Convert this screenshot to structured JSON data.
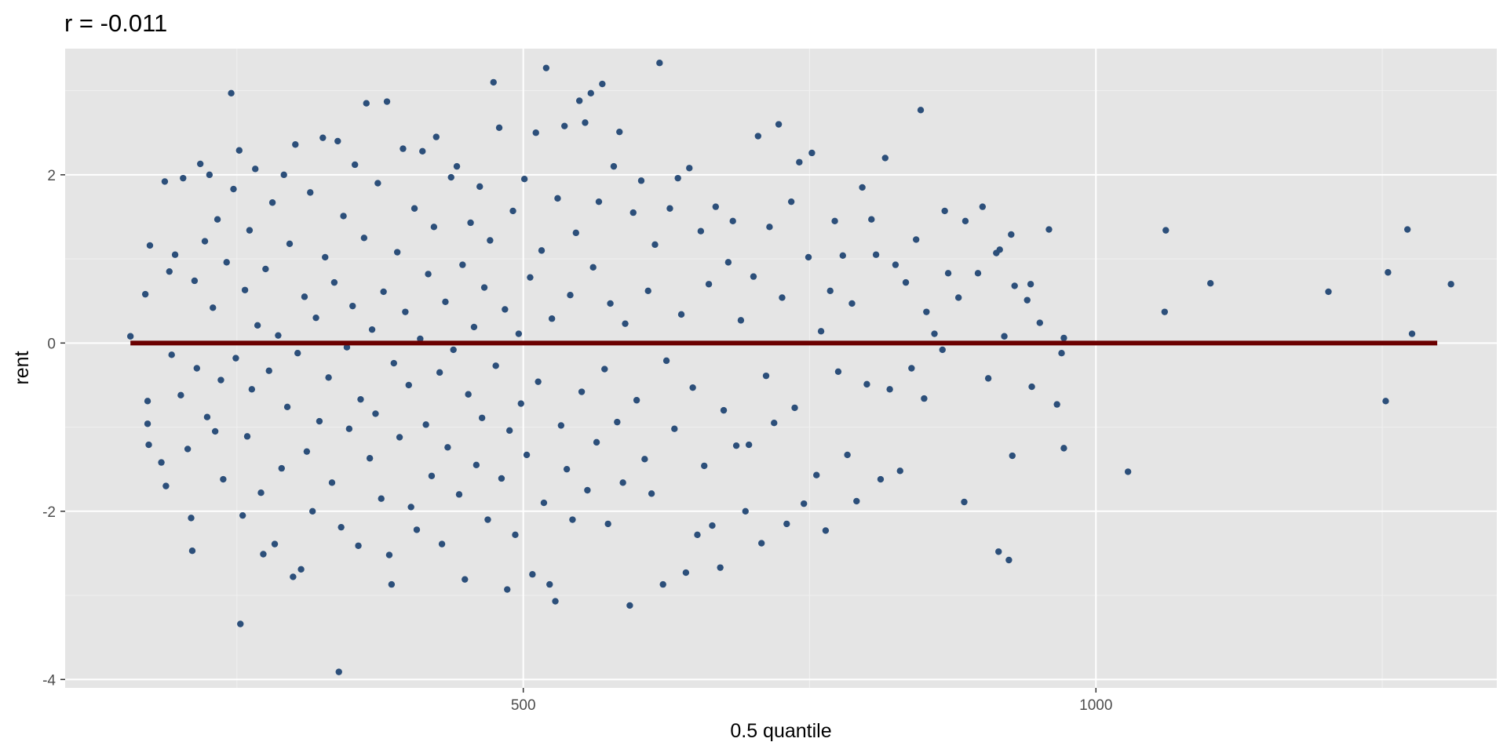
{
  "chart_data": {
    "type": "scatter",
    "title": "r = -0.011",
    "xlabel": "0.5 quantile",
    "ylabel": "rent",
    "xlim": [
      100,
      1350
    ],
    "ylim": [
      -4.1,
      3.5
    ],
    "x_ticks": [
      500,
      1000
    ],
    "x_tick_labels": [
      "500",
      "1000"
    ],
    "x_minor_ticks": [
      250,
      750,
      1250
    ],
    "y_ticks": [
      -4,
      -2,
      0,
      2
    ],
    "y_tick_labels": [
      "-4",
      "-2",
      "0",
      "2"
    ],
    "y_minor_ticks": [
      -3,
      -1,
      1,
      3
    ],
    "grid": true,
    "point_color": "#2c4f7a",
    "line_color": "#6b0000",
    "panel_background": "#e5e5e5",
    "fit_line": {
      "x": [
        157,
        1298
      ],
      "y": [
        0,
        0
      ]
    },
    "points": [
      {
        "x": 157,
        "y": 0.08
      },
      {
        "x": 170,
        "y": 0.58
      },
      {
        "x": 172,
        "y": -0.69
      },
      {
        "x": 173,
        "y": -1.21
      },
      {
        "x": 172,
        "y": -0.96
      },
      {
        "x": 174,
        "y": 1.16
      },
      {
        "x": 184,
        "y": -1.42
      },
      {
        "x": 187,
        "y": 1.92
      },
      {
        "x": 188,
        "y": -1.7
      },
      {
        "x": 191,
        "y": 0.85
      },
      {
        "x": 193,
        "y": -0.14
      },
      {
        "x": 196,
        "y": 1.05
      },
      {
        "x": 201,
        "y": -0.62
      },
      {
        "x": 203,
        "y": 1.96
      },
      {
        "x": 207,
        "y": -1.26
      },
      {
        "x": 210,
        "y": -2.08
      },
      {
        "x": 211,
        "y": -2.47
      },
      {
        "x": 213,
        "y": 0.74
      },
      {
        "x": 215,
        "y": -0.3
      },
      {
        "x": 218,
        "y": 2.13
      },
      {
        "x": 222,
        "y": 1.21
      },
      {
        "x": 224,
        "y": -0.88
      },
      {
        "x": 226,
        "y": 2.0
      },
      {
        "x": 229,
        "y": 0.42
      },
      {
        "x": 231,
        "y": -1.05
      },
      {
        "x": 233,
        "y": 1.47
      },
      {
        "x": 236,
        "y": -0.44
      },
      {
        "x": 238,
        "y": -1.62
      },
      {
        "x": 241,
        "y": 0.96
      },
      {
        "x": 245,
        "y": 2.97
      },
      {
        "x": 247,
        "y": 1.83
      },
      {
        "x": 249,
        "y": -0.18
      },
      {
        "x": 252,
        "y": 2.29
      },
      {
        "x": 253,
        "y": -3.34
      },
      {
        "x": 255,
        "y": -2.05
      },
      {
        "x": 257,
        "y": 0.63
      },
      {
        "x": 259,
        "y": -1.11
      },
      {
        "x": 261,
        "y": 1.34
      },
      {
        "x": 263,
        "y": -0.55
      },
      {
        "x": 266,
        "y": 2.07
      },
      {
        "x": 268,
        "y": 0.21
      },
      {
        "x": 271,
        "y": -1.78
      },
      {
        "x": 273,
        "y": -2.51
      },
      {
        "x": 275,
        "y": 0.88
      },
      {
        "x": 278,
        "y": -0.33
      },
      {
        "x": 281,
        "y": 1.67
      },
      {
        "x": 283,
        "y": -2.39
      },
      {
        "x": 286,
        "y": 0.09
      },
      {
        "x": 289,
        "y": -1.49
      },
      {
        "x": 291,
        "y": 2.0
      },
      {
        "x": 294,
        "y": -0.76
      },
      {
        "x": 296,
        "y": 1.18
      },
      {
        "x": 299,
        "y": -2.78
      },
      {
        "x": 301,
        "y": 2.36
      },
      {
        "x": 303,
        "y": -0.12
      },
      {
        "x": 306,
        "y": -2.69
      },
      {
        "x": 309,
        "y": 0.55
      },
      {
        "x": 311,
        "y": -1.29
      },
      {
        "x": 314,
        "y": 1.79
      },
      {
        "x": 316,
        "y": -2.0
      },
      {
        "x": 319,
        "y": 0.3
      },
      {
        "x": 322,
        "y": -0.93
      },
      {
        "x": 325,
        "y": 2.44
      },
      {
        "x": 327,
        "y": 1.02
      },
      {
        "x": 330,
        "y": -0.41
      },
      {
        "x": 333,
        "y": -1.66
      },
      {
        "x": 335,
        "y": 0.72
      },
      {
        "x": 338,
        "y": 2.4
      },
      {
        "x": 339,
        "y": -3.91
      },
      {
        "x": 341,
        "y": -2.19
      },
      {
        "x": 343,
        "y": 1.51
      },
      {
        "x": 346,
        "y": -0.05
      },
      {
        "x": 348,
        "y": -1.02
      },
      {
        "x": 351,
        "y": 0.44
      },
      {
        "x": 353,
        "y": 2.12
      },
      {
        "x": 356,
        "y": -2.41
      },
      {
        "x": 358,
        "y": -0.67
      },
      {
        "x": 361,
        "y": 1.25
      },
      {
        "x": 363,
        "y": 2.85
      },
      {
        "x": 366,
        "y": -1.37
      },
      {
        "x": 368,
        "y": 0.16
      },
      {
        "x": 371,
        "y": -0.84
      },
      {
        "x": 373,
        "y": 1.9
      },
      {
        "x": 376,
        "y": -1.85
      },
      {
        "x": 378,
        "y": 0.61
      },
      {
        "x": 381,
        "y": 2.87
      },
      {
        "x": 383,
        "y": -2.52
      },
      {
        "x": 385,
        "y": -2.87
      },
      {
        "x": 387,
        "y": -0.24
      },
      {
        "x": 390,
        "y": 1.08
      },
      {
        "x": 392,
        "y": -1.12
      },
      {
        "x": 395,
        "y": 2.31
      },
      {
        "x": 397,
        "y": 0.37
      },
      {
        "x": 400,
        "y": -0.5
      },
      {
        "x": 402,
        "y": -1.95
      },
      {
        "x": 405,
        "y": 1.6
      },
      {
        "x": 407,
        "y": -2.22
      },
      {
        "x": 410,
        "y": 0.05
      },
      {
        "x": 412,
        "y": 2.28
      },
      {
        "x": 415,
        "y": -0.97
      },
      {
        "x": 417,
        "y": 0.82
      },
      {
        "x": 420,
        "y": -1.58
      },
      {
        "x": 422,
        "y": 1.38
      },
      {
        "x": 424,
        "y": 2.45
      },
      {
        "x": 427,
        "y": -0.35
      },
      {
        "x": 429,
        "y": -2.39
      },
      {
        "x": 432,
        "y": 0.49
      },
      {
        "x": 434,
        "y": -1.24
      },
      {
        "x": 437,
        "y": 1.97
      },
      {
        "x": 439,
        "y": -0.08
      },
      {
        "x": 442,
        "y": 2.1
      },
      {
        "x": 444,
        "y": -1.8
      },
      {
        "x": 447,
        "y": 0.93
      },
      {
        "x": 449,
        "y": -2.81
      },
      {
        "x": 452,
        "y": -0.61
      },
      {
        "x": 454,
        "y": 1.43
      },
      {
        "x": 457,
        "y": 0.19
      },
      {
        "x": 459,
        "y": -1.45
      },
      {
        "x": 462,
        "y": 1.86
      },
      {
        "x": 464,
        "y": -0.89
      },
      {
        "x": 466,
        "y": 0.66
      },
      {
        "x": 469,
        "y": -2.1
      },
      {
        "x": 471,
        "y": 1.22
      },
      {
        "x": 474,
        "y": 3.1
      },
      {
        "x": 476,
        "y": -0.27
      },
      {
        "x": 479,
        "y": 2.56
      },
      {
        "x": 481,
        "y": -1.61
      },
      {
        "x": 484,
        "y": 0.4
      },
      {
        "x": 486,
        "y": -2.93
      },
      {
        "x": 488,
        "y": -1.04
      },
      {
        "x": 491,
        "y": 1.57
      },
      {
        "x": 493,
        "y": -2.28
      },
      {
        "x": 496,
        "y": 0.11
      },
      {
        "x": 498,
        "y": -0.72
      },
      {
        "x": 501,
        "y": 1.95
      },
      {
        "x": 503,
        "y": -1.33
      },
      {
        "x": 506,
        "y": 0.78
      },
      {
        "x": 508,
        "y": -2.75
      },
      {
        "x": 511,
        "y": 2.5
      },
      {
        "x": 513,
        "y": -0.46
      },
      {
        "x": 516,
        "y": 1.1
      },
      {
        "x": 518,
        "y": -1.9
      },
      {
        "x": 520,
        "y": 3.27
      },
      {
        "x": 523,
        "y": -2.87
      },
      {
        "x": 525,
        "y": 0.29
      },
      {
        "x": 528,
        "y": -3.07
      },
      {
        "x": 530,
        "y": 1.72
      },
      {
        "x": 533,
        "y": -0.98
      },
      {
        "x": 536,
        "y": 2.58
      },
      {
        "x": 538,
        "y": -1.5
      },
      {
        "x": 541,
        "y": 0.57
      },
      {
        "x": 543,
        "y": -2.1
      },
      {
        "x": 546,
        "y": 1.31
      },
      {
        "x": 549,
        "y": 2.88
      },
      {
        "x": 551,
        "y": -0.58
      },
      {
        "x": 554,
        "y": 2.62
      },
      {
        "x": 556,
        "y": -1.75
      },
      {
        "x": 559,
        "y": 2.97
      },
      {
        "x": 561,
        "y": 0.9
      },
      {
        "x": 564,
        "y": -1.18
      },
      {
        "x": 566,
        "y": 1.68
      },
      {
        "x": 569,
        "y": 3.08
      },
      {
        "x": 571,
        "y": -0.31
      },
      {
        "x": 574,
        "y": -2.15
      },
      {
        "x": 576,
        "y": 0.47
      },
      {
        "x": 579,
        "y": 2.1
      },
      {
        "x": 582,
        "y": -0.94
      },
      {
        "x": 584,
        "y": 2.51
      },
      {
        "x": 587,
        "y": -1.66
      },
      {
        "x": 589,
        "y": 0.23
      },
      {
        "x": 593,
        "y": -3.12
      },
      {
        "x": 596,
        "y": 1.55
      },
      {
        "x": 599,
        "y": -0.68
      },
      {
        "x": 603,
        "y": 1.93
      },
      {
        "x": 606,
        "y": -1.38
      },
      {
        "x": 609,
        "y": 0.62
      },
      {
        "x": 612,
        "y": -1.79
      },
      {
        "x": 615,
        "y": 1.17
      },
      {
        "x": 619,
        "y": 3.33
      },
      {
        "x": 622,
        "y": -2.87
      },
      {
        "x": 625,
        "y": -0.21
      },
      {
        "x": 628,
        "y": 1.6
      },
      {
        "x": 632,
        "y": -1.02
      },
      {
        "x": 635,
        "y": 1.96
      },
      {
        "x": 638,
        "y": 0.34
      },
      {
        "x": 642,
        "y": -2.73
      },
      {
        "x": 645,
        "y": 2.08
      },
      {
        "x": 648,
        "y": -0.53
      },
      {
        "x": 652,
        "y": -2.28
      },
      {
        "x": 655,
        "y": 1.33
      },
      {
        "x": 658,
        "y": -1.46
      },
      {
        "x": 662,
        "y": 0.7
      },
      {
        "x": 665,
        "y": -2.17
      },
      {
        "x": 668,
        "y": 1.62
      },
      {
        "x": 672,
        "y": -2.67
      },
      {
        "x": 675,
        "y": -0.8
      },
      {
        "x": 679,
        "y": 0.96
      },
      {
        "x": 683,
        "y": 1.45
      },
      {
        "x": 686,
        "y": -1.22
      },
      {
        "x": 690,
        "y": 0.27
      },
      {
        "x": 694,
        "y": -2.0
      },
      {
        "x": 697,
        "y": -1.21
      },
      {
        "x": 701,
        "y": 0.79
      },
      {
        "x": 705,
        "y": 2.46
      },
      {
        "x": 708,
        "y": -2.38
      },
      {
        "x": 712,
        "y": -0.39
      },
      {
        "x": 715,
        "y": 1.38
      },
      {
        "x": 719,
        "y": -0.95
      },
      {
        "x": 723,
        "y": 2.6
      },
      {
        "x": 726,
        "y": 0.54
      },
      {
        "x": 730,
        "y": -2.15
      },
      {
        "x": 734,
        "y": 1.68
      },
      {
        "x": 737,
        "y": -0.77
      },
      {
        "x": 741,
        "y": 2.15
      },
      {
        "x": 745,
        "y": -1.91
      },
      {
        "x": 749,
        "y": 1.02
      },
      {
        "x": 752,
        "y": 2.26
      },
      {
        "x": 756,
        "y": -1.57
      },
      {
        "x": 760,
        "y": 0.14
      },
      {
        "x": 764,
        "y": -2.23
      },
      {
        "x": 768,
        "y": 0.62
      },
      {
        "x": 772,
        "y": 1.45
      },
      {
        "x": 775,
        "y": -0.34
      },
      {
        "x": 779,
        "y": 1.04
      },
      {
        "x": 783,
        "y": -1.33
      },
      {
        "x": 787,
        "y": 0.47
      },
      {
        "x": 791,
        "y": -1.88
      },
      {
        "x": 796,
        "y": 1.85
      },
      {
        "x": 800,
        "y": -0.49
      },
      {
        "x": 804,
        "y": 1.47
      },
      {
        "x": 808,
        "y": 1.05
      },
      {
        "x": 812,
        "y": -1.62
      },
      {
        "x": 816,
        "y": 2.2
      },
      {
        "x": 820,
        "y": -0.55
      },
      {
        "x": 825,
        "y": 0.93
      },
      {
        "x": 829,
        "y": -1.52
      },
      {
        "x": 834,
        "y": 0.72
      },
      {
        "x": 839,
        "y": -0.3
      },
      {
        "x": 843,
        "y": 1.23
      },
      {
        "x": 847,
        "y": 2.77
      },
      {
        "x": 850,
        "y": -0.66
      },
      {
        "x": 852,
        "y": 0.37
      },
      {
        "x": 859,
        "y": 0.11
      },
      {
        "x": 866,
        "y": -0.08
      },
      {
        "x": 868,
        "y": 1.57
      },
      {
        "x": 871,
        "y": 0.83
      },
      {
        "x": 880,
        "y": 0.54
      },
      {
        "x": 885,
        "y": -1.89
      },
      {
        "x": 886,
        "y": 1.45
      },
      {
        "x": 897,
        "y": 0.83
      },
      {
        "x": 901,
        "y": 1.62
      },
      {
        "x": 906,
        "y": -0.42
      },
      {
        "x": 913,
        "y": 1.07
      },
      {
        "x": 916,
        "y": 1.11
      },
      {
        "x": 915,
        "y": -2.48
      },
      {
        "x": 920,
        "y": 0.08
      },
      {
        "x": 924,
        "y": -2.58
      },
      {
        "x": 926,
        "y": 1.29
      },
      {
        "x": 927,
        "y": -1.34
      },
      {
        "x": 929,
        "y": 0.68
      },
      {
        "x": 940,
        "y": 0.51
      },
      {
        "x": 943,
        "y": 0.7
      },
      {
        "x": 944,
        "y": -0.52
      },
      {
        "x": 951,
        "y": 0.24
      },
      {
        "x": 959,
        "y": 1.35
      },
      {
        "x": 966,
        "y": -0.73
      },
      {
        "x": 970,
        "y": -0.12
      },
      {
        "x": 972,
        "y": -1.25
      },
      {
        "x": 972,
        "y": 0.06
      },
      {
        "x": 1028,
        "y": -1.53
      },
      {
        "x": 1061,
        "y": 1.34
      },
      {
        "x": 1060,
        "y": 0.37
      },
      {
        "x": 1100,
        "y": 0.71
      },
      {
        "x": 1203,
        "y": 0.61
      },
      {
        "x": 1255,
        "y": 0.84
      },
      {
        "x": 1253,
        "y": -0.69
      },
      {
        "x": 1272,
        "y": 1.35
      },
      {
        "x": 1276,
        "y": 0.11
      },
      {
        "x": 1310,
        "y": 0.7
      }
    ]
  }
}
